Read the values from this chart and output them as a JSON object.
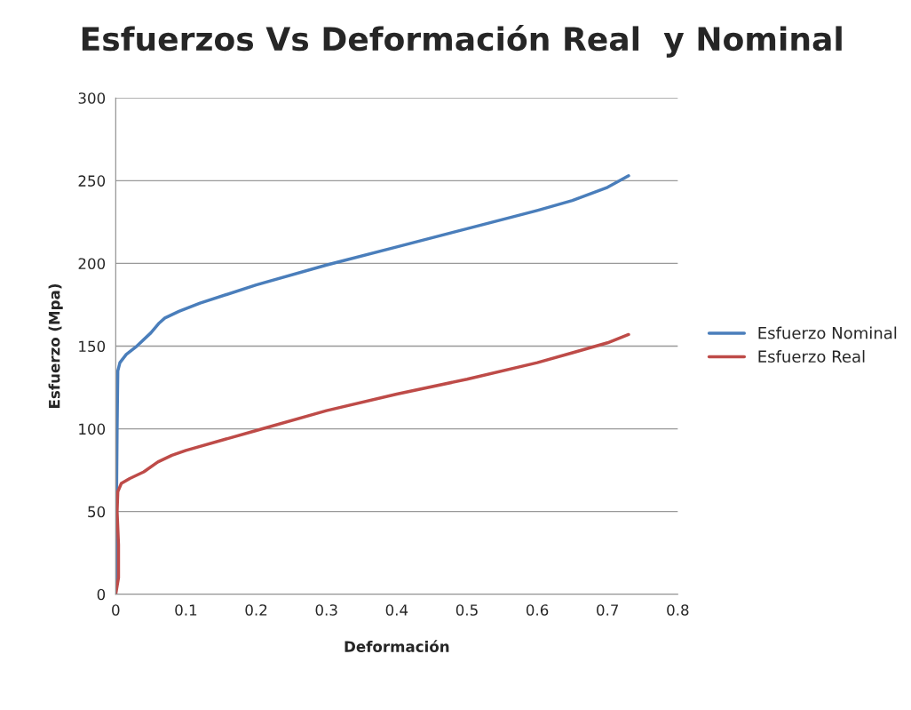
{
  "chart_data": {
    "type": "line",
    "title": "Esfuerzos Vs Deformación Real  y Nominal",
    "xlabel": "Deformación",
    "ylabel": "Esfuerzo (Mpa)",
    "xlim": [
      0,
      0.8
    ],
    "xticks": [
      0,
      0.1,
      0.2,
      0.3,
      0.4,
      0.5,
      0.6,
      0.7,
      0.8
    ],
    "ylim": [
      0,
      300
    ],
    "yticks": [
      0,
      50,
      100,
      150,
      200,
      250,
      300
    ],
    "grid": "y",
    "legend": "right",
    "marker": "none",
    "line_style": "solid",
    "series": [
      {
        "name": "Esfuerzo Nominal",
        "color": "#4a7ebb",
        "x": [
          0,
          0.002,
          0.003,
          0.006,
          0.015,
          0.03,
          0.05,
          0.062,
          0.07,
          0.09,
          0.12,
          0.2,
          0.3,
          0.4,
          0.5,
          0.6,
          0.65,
          0.7,
          0.73
        ],
        "values": [
          0,
          100,
          135,
          140,
          145,
          150,
          158,
          164,
          167,
          171,
          176,
          187,
          199,
          210,
          221,
          232,
          238,
          246,
          253
        ]
      },
      {
        "name": "Esfuerzo Real",
        "color": "#be4b48",
        "x": [
          0,
          0.004,
          0.004,
          0.002,
          0.003,
          0.008,
          0.02,
          0.04,
          0.06,
          0.08,
          0.1,
          0.2,
          0.3,
          0.4,
          0.5,
          0.6,
          0.65,
          0.7,
          0.73
        ],
        "values": [
          0,
          10,
          30,
          50,
          62,
          67,
          70,
          74,
          80,
          84,
          87,
          99,
          111,
          121,
          130,
          140,
          146,
          152,
          157
        ]
      }
    ]
  }
}
